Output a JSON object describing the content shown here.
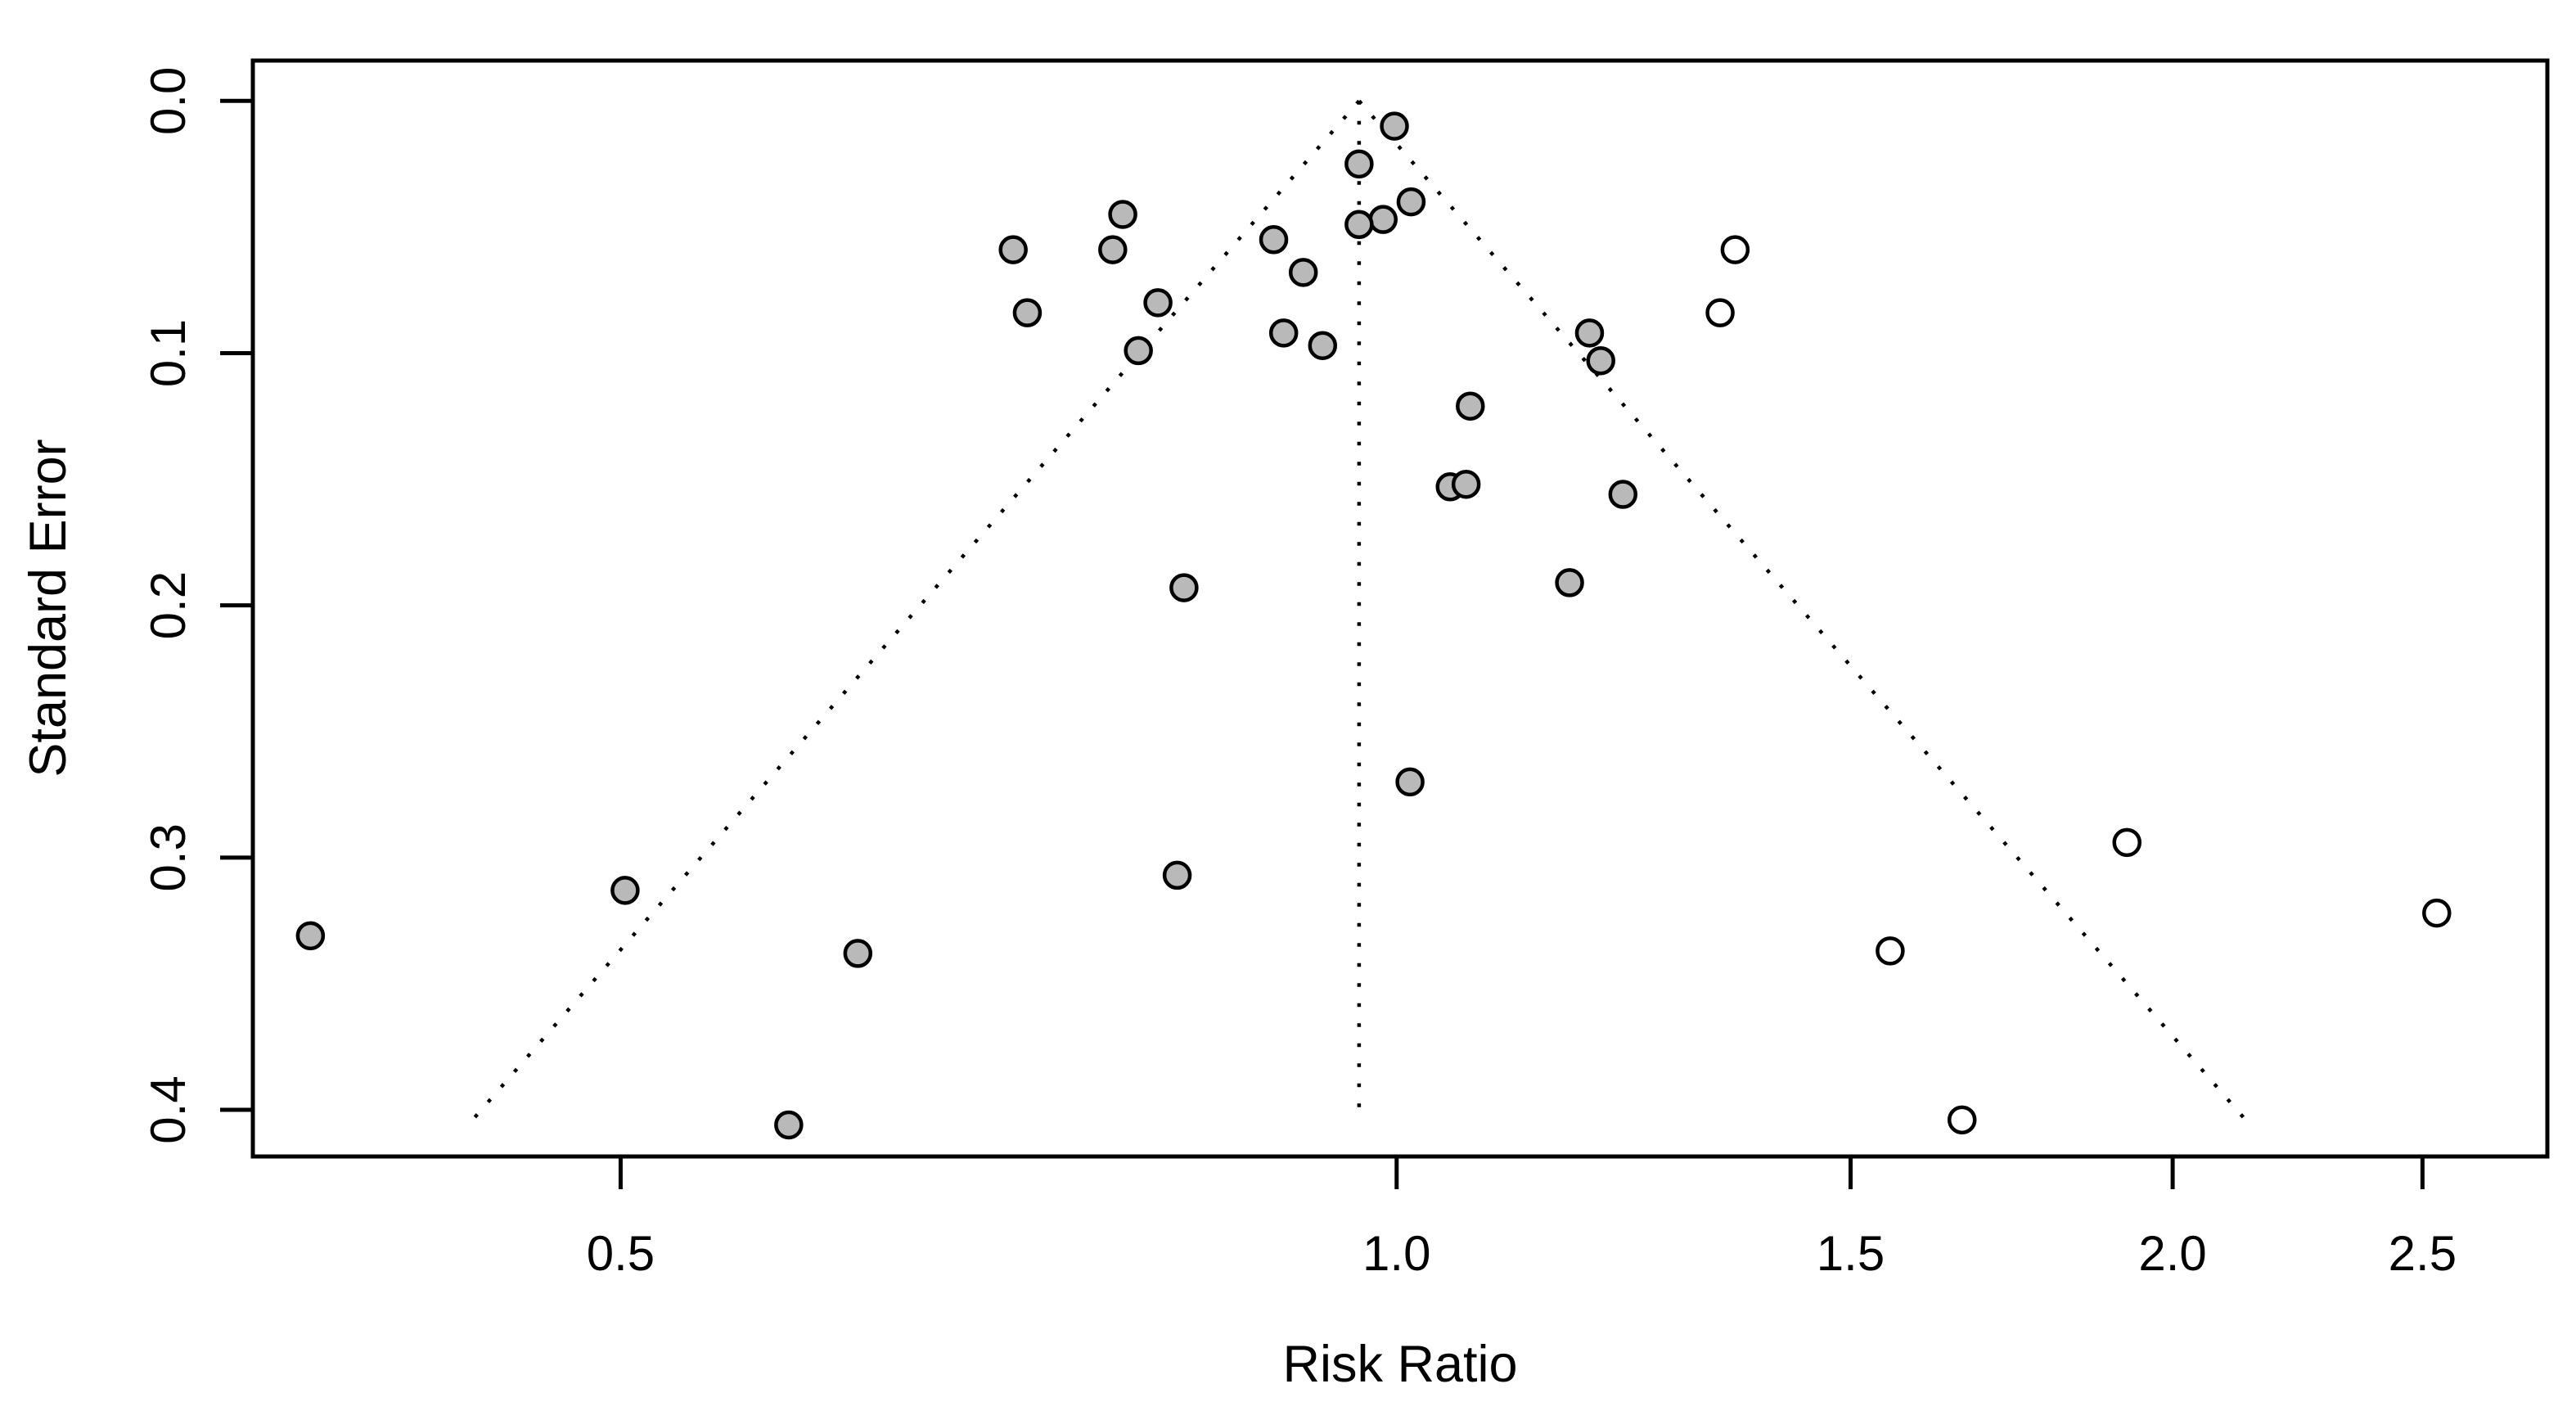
{
  "chart_data": {
    "type": "scatter",
    "subtype": "funnel-plot",
    "title": "",
    "xlabel": "Risk Ratio",
    "ylabel": "Standard Error",
    "x_scale": "log",
    "y_axis_reversed_downward": true,
    "xlim": [
      0.36,
      2.795
    ],
    "ylim": [
      -0.016,
      0.4185
    ],
    "x_ticks": [
      0.5,
      1.0,
      1.5,
      2.0,
      2.5
    ],
    "x_tick_labels": [
      "0.5",
      "1.0",
      "1.5",
      "2.0",
      "2.5"
    ],
    "y_ticks": [
      0.0,
      0.1,
      0.2,
      0.3,
      0.4
    ],
    "y_tick_labels": [
      "0.0",
      "0.1",
      "0.2",
      "0.3",
      "0.4"
    ],
    "grid": false,
    "legend": "none",
    "colors": {
      "observed_fill": "#b9b9b9",
      "imputed_fill": "#ffffff",
      "point_border": "#000000",
      "axis": "#000000",
      "reference_lines": "#000000",
      "background": "#ffffff"
    },
    "funnel": {
      "center_rr": 0.967,
      "z_value": 1.96,
      "se_top": 0.0,
      "se_bottom": 0.405,
      "line_style": "dotted"
    },
    "series": [
      {
        "name": "observed",
        "marker": "circle-gray",
        "points": [
          {
            "rr": 0.998,
            "se": 0.01
          },
          {
            "rr": 0.967,
            "se": 0.025
          },
          {
            "rr": 1.013,
            "se": 0.04
          },
          {
            "rr": 0.988,
            "se": 0.047
          },
          {
            "rr": 0.967,
            "se": 0.049
          },
          {
            "rr": 0.783,
            "se": 0.045
          },
          {
            "rr": 0.71,
            "se": 0.059
          },
          {
            "rr": 0.776,
            "se": 0.059
          },
          {
            "rr": 0.896,
            "se": 0.055
          },
          {
            "rr": 0.92,
            "se": 0.068
          },
          {
            "rr": 0.719,
            "se": 0.084
          },
          {
            "rr": 0.808,
            "se": 0.08
          },
          {
            "rr": 0.794,
            "se": 0.099
          },
          {
            "rr": 0.904,
            "se": 0.092
          },
          {
            "rr": 0.936,
            "se": 0.097
          },
          {
            "rr": 1.188,
            "se": 0.092
          },
          {
            "rr": 1.2,
            "se": 0.103
          },
          {
            "rr": 1.068,
            "se": 0.121
          },
          {
            "rr": 1.049,
            "se": 0.153
          },
          {
            "rr": 1.064,
            "se": 0.152
          },
          {
            "rr": 1.224,
            "se": 0.156
          },
          {
            "rr": 1.167,
            "se": 0.191
          },
          {
            "rr": 0.827,
            "se": 0.193
          },
          {
            "rr": 1.012,
            "se": 0.27
          },
          {
            "rr": 0.379,
            "se": 0.331
          },
          {
            "rr": 0.502,
            "se": 0.313
          },
          {
            "rr": 0.822,
            "se": 0.307
          },
          {
            "rr": 0.618,
            "se": 0.338
          },
          {
            "rr": 0.581,
            "se": 0.406
          }
        ]
      },
      {
        "name": "imputed",
        "marker": "circle-open",
        "points": [
          {
            "rr": 1.353,
            "se": 0.059
          },
          {
            "rr": 1.335,
            "se": 0.084
          },
          {
            "rr": 1.92,
            "se": 0.294
          },
          {
            "rr": 2.532,
            "se": 0.322
          },
          {
            "rr": 1.554,
            "se": 0.337
          },
          {
            "rr": 1.657,
            "se": 0.404
          }
        ]
      }
    ]
  }
}
